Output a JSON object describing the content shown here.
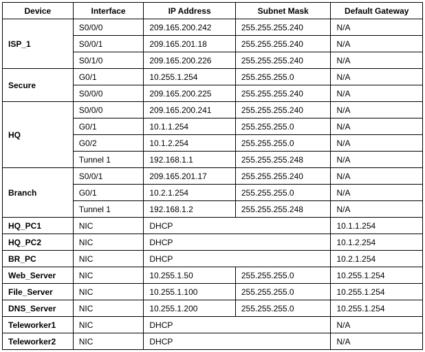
{
  "headers": {
    "device": "Device",
    "interface": "Interface",
    "ip": "IP Address",
    "mask": "Subnet Mask",
    "gateway": "Default Gateway"
  },
  "devices": {
    "isp1": {
      "name": "ISP_1",
      "rows": [
        {
          "interface": "S0/0/0",
          "ip": "209.165.200.242",
          "mask": "255.255.255.240",
          "gateway": "N/A"
        },
        {
          "interface": "S0/0/1",
          "ip": "209.165.201.18",
          "mask": "255.255.255.240",
          "gateway": "N/A"
        },
        {
          "interface": "S0/1/0",
          "ip": "209.165.200.226",
          "mask": "255.255.255.240",
          "gateway": "N/A"
        }
      ]
    },
    "secure": {
      "name": "Secure",
      "rows": [
        {
          "interface": "G0/1",
          "ip": "10.255.1.254",
          "mask": "255.255.255.0",
          "gateway": "N/A"
        },
        {
          "interface": "S0/0/0",
          "ip": "209.165.200.225",
          "mask": "255.255.255.240",
          "gateway": "N/A"
        }
      ]
    },
    "hq": {
      "name": "HQ",
      "rows": [
        {
          "interface": "S0/0/0",
          "ip": "209.165.200.241",
          "mask": "255.255.255.240",
          "gateway": "N/A"
        },
        {
          "interface": "G0/1",
          "ip": "10.1.1.254",
          "mask": "255.255.255.0",
          "gateway": "N/A"
        },
        {
          "interface": "G0/2",
          "ip": "10.1.2.254",
          "mask": "255.255.255.0",
          "gateway": "N/A"
        },
        {
          "interface": "Tunnel 1",
          "ip": "192.168.1.1",
          "mask": "255.255.255.248",
          "gateway": "N/A"
        }
      ]
    },
    "branch": {
      "name": "Branch",
      "rows": [
        {
          "interface": "S0/0/1",
          "ip": "209.165.201.17",
          "mask": "255.255.255.240",
          "gateway": "N/A"
        },
        {
          "interface": "G0/1",
          "ip": "10.2.1.254",
          "mask": "255.255.255.0",
          "gateway": "N/A"
        },
        {
          "interface": "Tunnel 1",
          "ip": "192.168.1.2",
          "mask": "255.255.255.248",
          "gateway": "N/A"
        }
      ]
    },
    "hqpc1": {
      "name": "HQ_PC1",
      "interface": "NIC",
      "dhcp": "DHCP",
      "gateway": "10.1.1.254"
    },
    "hqpc2": {
      "name": "HQ_PC2",
      "interface": "NIC",
      "dhcp": "DHCP",
      "gateway": "10.1.2.254"
    },
    "brpc": {
      "name": "BR_PC",
      "interface": "NIC",
      "dhcp": "DHCP",
      "gateway": "10.2.1.254"
    },
    "web": {
      "name": "Web_Server",
      "interface": "NIC",
      "ip": "10.255.1.50",
      "mask": "255.255.255.0",
      "gateway": "10.255.1.254"
    },
    "file": {
      "name": "File_Server",
      "interface": "NIC",
      "ip": "10.255.1.100",
      "mask": "255.255.255.0",
      "gateway": "10.255.1.254"
    },
    "dns": {
      "name": "DNS_Server",
      "interface": "NIC",
      "ip": "10.255.1.200",
      "mask": "255.255.255.0",
      "gateway": "10.255.1.254"
    },
    "tw1": {
      "name": "Teleworker1",
      "interface": "NIC",
      "dhcp": "DHCP",
      "gateway": "N/A"
    },
    "tw2": {
      "name": "Teleworker2",
      "interface": "NIC",
      "dhcp": "DHCP",
      "gateway": "N/A"
    }
  }
}
